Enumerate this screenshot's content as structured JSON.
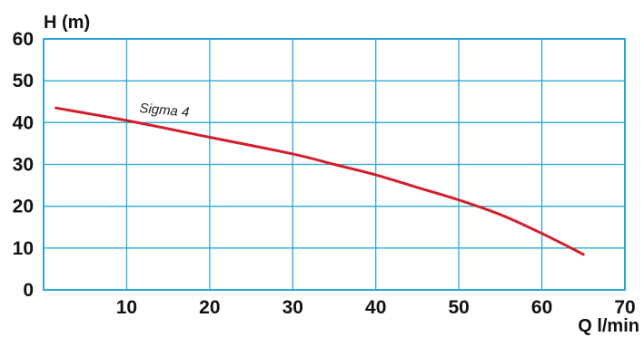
{
  "chart_data": {
    "type": "line",
    "title": "",
    "ylabel": "H (m)",
    "xlabel": "Q l/min",
    "xlim": [
      0,
      70
    ],
    "ylim": [
      0,
      60
    ],
    "x_ticks": [
      10,
      20,
      30,
      40,
      50,
      60,
      70
    ],
    "y_ticks": [
      0,
      10,
      20,
      30,
      40,
      50,
      60
    ],
    "grid": true,
    "series": [
      {
        "name": "Sigma 4",
        "color": "#d21f2b",
        "x": [
          1.5,
          10,
          20,
          30,
          35,
          40,
          45,
          50,
          55,
          60,
          65
        ],
        "y": [
          43.5,
          40.5,
          36.5,
          32.5,
          30,
          27.5,
          24.5,
          21.5,
          18,
          13.5,
          8.5
        ]
      }
    ],
    "colors": {
      "grid": "#2aa9d8",
      "frame": "#2aa9d8",
      "text": "#111111"
    }
  }
}
